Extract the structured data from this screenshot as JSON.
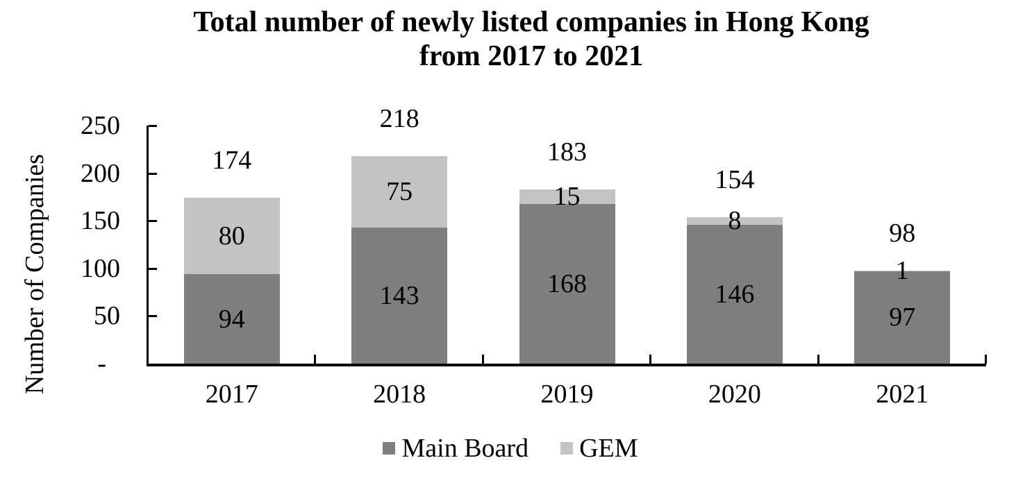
{
  "title": {
    "line1": "Total number of newly listed companies in Hong Kong",
    "line2": "from 2017 to 2021"
  },
  "chart_data": {
    "type": "bar",
    "stacked": true,
    "title": "Total number of newly listed companies in Hong Kong from 2017 to 2021",
    "categories": [
      "2017",
      "2018",
      "2019",
      "2020",
      "2021"
    ],
    "series": [
      {
        "name": "Main Board",
        "color": "#7f7f7f",
        "values": [
          94,
          143,
          168,
          146,
          97
        ]
      },
      {
        "name": "GEM",
        "color": "#c3c3c3",
        "values": [
          80,
          75,
          15,
          8,
          1
        ]
      }
    ],
    "totals": [
      174,
      218,
      183,
      154,
      98
    ],
    "xlabel": "",
    "ylabel": "Number of Companies",
    "ylim": [
      0,
      250
    ],
    "yticks": [
      0,
      50,
      100,
      150,
      200,
      250
    ],
    "ytick_labels": [
      "-",
      "50",
      "100",
      "150",
      "200",
      "250"
    ],
    "grid": false,
    "legend_position": "bottom",
    "text_color": "#000000",
    "axis_color": "#000000",
    "background_color": "#ffffff"
  }
}
